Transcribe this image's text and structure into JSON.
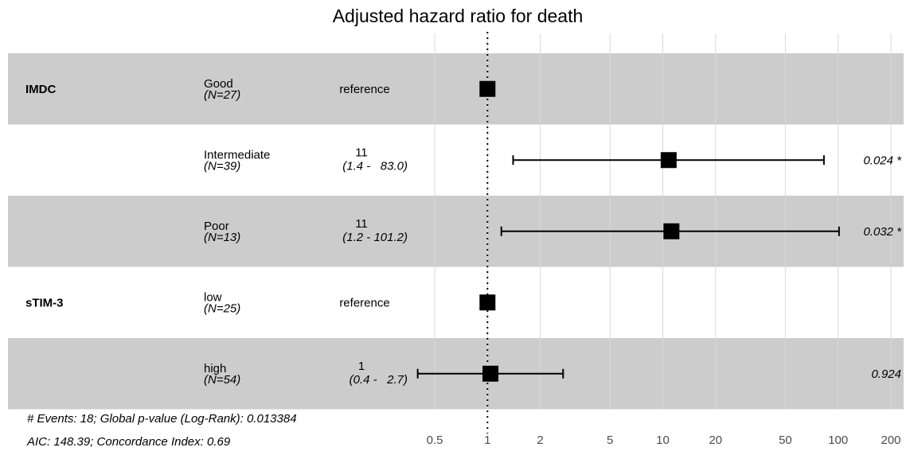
{
  "chart_data": {
    "type": "forest",
    "title": "Adjusted hazard ratio for death",
    "x_scale": "log",
    "xlim": [
      0.4,
      210
    ],
    "reference_line": 1,
    "ticks": [
      0.5,
      1,
      2,
      5,
      10,
      20,
      50,
      100,
      200
    ],
    "tick_labels": [
      "0.5",
      "1",
      "2",
      "5",
      "10",
      "20",
      "50",
      "100",
      "200"
    ],
    "rows": [
      {
        "variable": "IMDC",
        "level": "Good",
        "n_label": "(N=27)",
        "estimate_label": "reference",
        "ci_label": "",
        "p_label": "",
        "hr": 1,
        "lower": null,
        "upper": null,
        "shaded": true
      },
      {
        "variable": "",
        "level": "Intermediate",
        "n_label": "(N=39)",
        "estimate_label": "11",
        "ci_label": "(1.4 -   83.0)",
        "p_label": "0.024 *",
        "hr": 10.8,
        "lower": 1.4,
        "upper": 83.0,
        "shaded": false
      },
      {
        "variable": "",
        "level": "Poor",
        "n_label": "(N=13)",
        "estimate_label": "11",
        "ci_label": "(1.2 - 101.2)",
        "p_label": "0.032 *",
        "hr": 11.2,
        "lower": 1.2,
        "upper": 101.2,
        "shaded": true
      },
      {
        "variable": "sTIM-3",
        "level": "low",
        "n_label": "(N=25)",
        "estimate_label": "reference",
        "ci_label": "",
        "p_label": "",
        "hr": 1,
        "lower": null,
        "upper": null,
        "shaded": false
      },
      {
        "variable": "",
        "level": "high",
        "n_label": "(N=54)",
        "estimate_label": "1",
        "ci_label": "(0.4 -   2.7)",
        "p_label": "0.924",
        "hr": 1.04,
        "lower": 0.4,
        "upper": 2.7,
        "shaded": true
      }
    ],
    "footnote_1": "# Events: 18; Global p-value (Log-Rank): 0.013384",
    "footnote_2": "AIC: 148.39; Concordance Index: 0.69",
    "colors": {
      "band": "#cccccc",
      "grid": "#d9d9d9",
      "marker": "#000000",
      "tick_text": "#4d4d4d"
    }
  }
}
